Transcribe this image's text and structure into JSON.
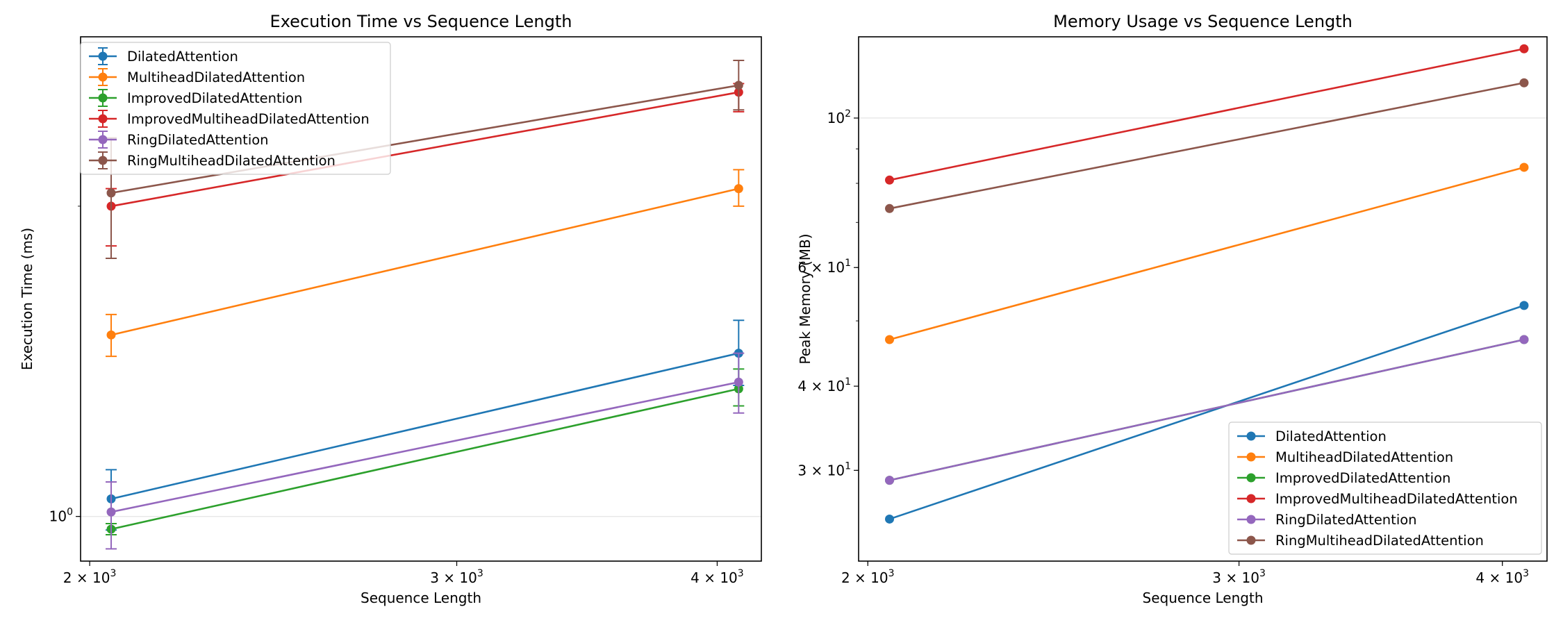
{
  "chart_data": [
    {
      "type": "line",
      "title": "Execution Time vs Sequence Length",
      "xlabel": "Sequence Length",
      "ylabel": "Execution Time (ms)",
      "xscale": "log",
      "yscale": "log",
      "xlim": [
        1980,
        4200
      ],
      "ylim": [
        0.905,
        2.92
      ],
      "x_ticks": [
        {
          "value": 2000,
          "base": "2 × 10",
          "exp": "3"
        },
        {
          "value": 3000,
          "base": "3 × 10",
          "exp": "3"
        },
        {
          "value": 4000,
          "base": "4 × 10",
          "exp": "3"
        }
      ],
      "y_ticks": [
        {
          "value": 1.0,
          "base": "10",
          "exp": "0"
        }
      ],
      "grid": "y-major",
      "legend": "upper left",
      "error_bars": true,
      "series": [
        {
          "name": "DilatedAttention",
          "color": "#1f77b4",
          "x": [
            2048,
            4096
          ],
          "y": [
            1.04,
            1.44
          ],
          "err_low": [
            0.07,
            0.1
          ],
          "err_high": [
            0.07,
            0.11
          ]
        },
        {
          "name": "MultiheadDilatedAttention",
          "color": "#ff7f0e",
          "x": [
            2048,
            4096
          ],
          "y": [
            1.5,
            2.08
          ],
          "err_low": [
            0.07,
            0.08
          ],
          "err_high": [
            0.07,
            0.09
          ]
        },
        {
          "name": "ImprovedDilatedAttention",
          "color": "#2ca02c",
          "x": [
            2048,
            4096
          ],
          "y": [
            0.972,
            1.33
          ],
          "err_low": [
            0.012,
            0.05
          ],
          "err_high": [
            0.012,
            0.06
          ]
        },
        {
          "name": "ImprovedMultiheadDilatedAttention",
          "color": "#d62728",
          "x": [
            2048,
            4096
          ],
          "y": [
            2.0,
            2.58
          ],
          "err_low": [
            0.17,
            0.11
          ],
          "err_high": [
            0.08,
            0.05
          ]
        },
        {
          "name": "RingDilatedAttention",
          "color": "#9467bd",
          "x": [
            2048,
            4096
          ],
          "y": [
            1.01,
            1.35
          ],
          "err_low": [
            0.08,
            0.09
          ],
          "err_high": [
            0.07,
            0.09
          ]
        },
        {
          "name": "RingMultiheadDilatedAttention",
          "color": "#8c564b",
          "x": [
            2048,
            4096
          ],
          "y": [
            2.06,
            2.62
          ],
          "err_low": [
            0.28,
            0.14
          ],
          "err_high": [
            0.27,
            0.15
          ]
        }
      ]
    },
    {
      "type": "line",
      "title": "Memory Usage vs Sequence Length",
      "xlabel": "Sequence Length",
      "ylabel": "Peak Memory (MB)",
      "xscale": "log",
      "yscale": "log",
      "xlim": [
        1980,
        4200
      ],
      "ylim": [
        22.0,
        132.0
      ],
      "x_ticks": [
        {
          "value": 2000,
          "base": "2 × 10",
          "exp": "3"
        },
        {
          "value": 3000,
          "base": "3 × 10",
          "exp": "3"
        },
        {
          "value": 4000,
          "base": "4 × 10",
          "exp": "3"
        }
      ],
      "y_ticks": [
        {
          "value": 30,
          "base": "3 × 10",
          "exp": "1"
        },
        {
          "value": 40,
          "base": "4 × 10",
          "exp": "1"
        },
        {
          "value": 60,
          "base": "6 × 10",
          "exp": "1"
        },
        {
          "value": 100,
          "base": "10",
          "exp": "2"
        }
      ],
      "grid": "y-major",
      "legend": "lower right",
      "error_bars": false,
      "series": [
        {
          "name": "DilatedAttention",
          "color": "#1f77b4",
          "x": [
            2048,
            4096
          ],
          "y": [
            25.4,
            52.7
          ]
        },
        {
          "name": "MultiheadDilatedAttention",
          "color": "#ff7f0e",
          "x": [
            2048,
            4096
          ],
          "y": [
            46.9,
            84.5
          ]
        },
        {
          "name": "ImprovedDilatedAttention",
          "color": "#2ca02c",
          "x": [
            2048,
            4096
          ],
          "y": [
            29.0,
            46.9
          ]
        },
        {
          "name": "ImprovedMultiheadDilatedAttention",
          "color": "#d62728",
          "x": [
            2048,
            4096
          ],
          "y": [
            80.9,
            126.7
          ]
        },
        {
          "name": "RingDilatedAttention",
          "color": "#9467bd",
          "x": [
            2048,
            4096
          ],
          "y": [
            29.0,
            46.9
          ]
        },
        {
          "name": "RingMultiheadDilatedAttention",
          "color": "#8c564b",
          "x": [
            2048,
            4096
          ],
          "y": [
            73.4,
            112.8
          ]
        }
      ]
    }
  ]
}
